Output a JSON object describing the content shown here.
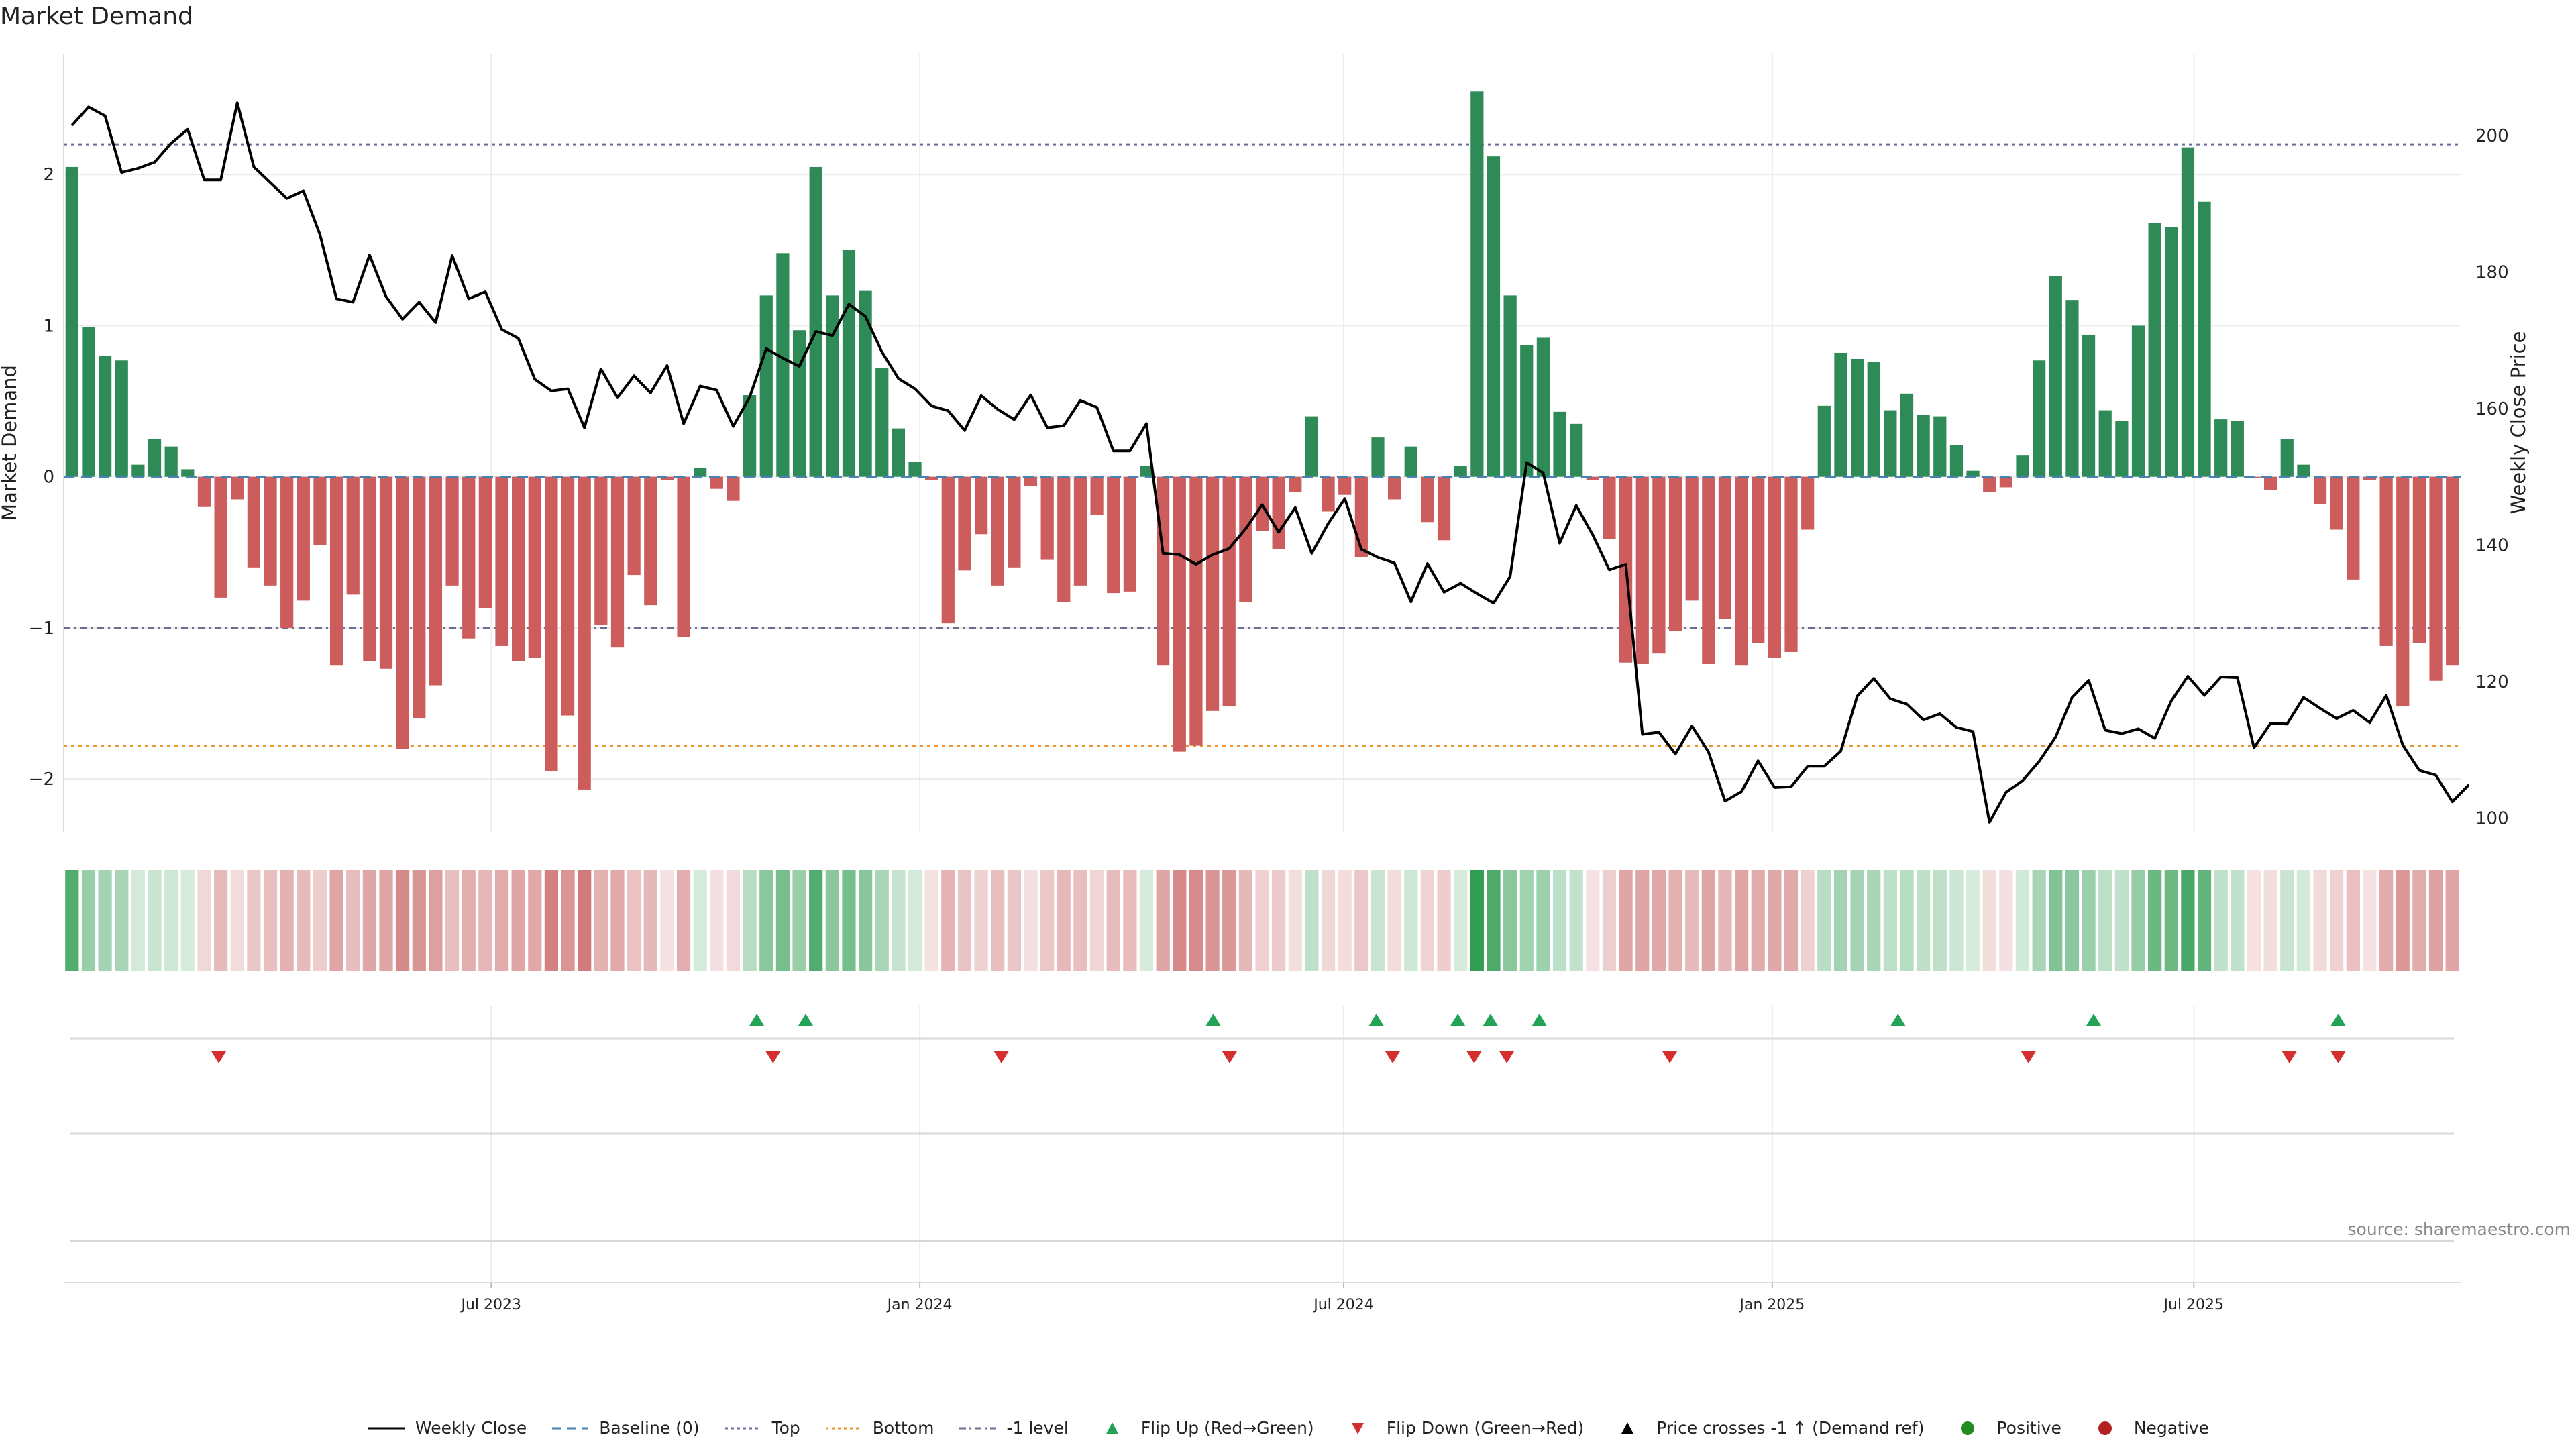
{
  "chart_data": {
    "type": "bar+line",
    "title": "Market Demand",
    "left_axis": {
      "label": "Market Demand",
      "ylim": [
        -2.35,
        2.8
      ],
      "ticks": [
        -2,
        -1,
        0,
        1,
        2
      ]
    },
    "right_axis": {
      "label": "Weekly Close Price",
      "ylim": [
        98,
        212
      ],
      "ticks": [
        100,
        120,
        140,
        160,
        180,
        200
      ]
    },
    "x_axis": {
      "start": "2023-01-02",
      "end": "2025-10-20",
      "ticks": [
        {
          "date": "2023-07-01",
          "label": "Jul 2023"
        },
        {
          "date": "2024-01-01",
          "label": "Jan 2024"
        },
        {
          "date": "2024-07-01",
          "label": "Jul 2024"
        },
        {
          "date": "2025-01-01",
          "label": "Jan 2025"
        },
        {
          "date": "2025-07-01",
          "label": "Jul 2025"
        }
      ]
    },
    "reference_lines": {
      "top": 2.2,
      "bottom": -1.78,
      "minus_one_level": -1,
      "baseline": 0
    },
    "demand": [
      2.05,
      0.99,
      0.8,
      0.77,
      0.08,
      0.25,
      0.2,
      0.05,
      -0.2,
      -0.8,
      -0.15,
      -0.6,
      -0.72,
      -1.0,
      -0.82,
      -0.45,
      -1.25,
      -0.78,
      -1.22,
      -1.27,
      -1.8,
      -1.6,
      -1.38,
      -0.72,
      -1.07,
      -0.87,
      -1.12,
      -1.22,
      -1.2,
      -1.95,
      -1.58,
      -2.07,
      -0.98,
      -1.13,
      -0.65,
      -0.85,
      -0.02,
      -1.06,
      0.06,
      -0.08,
      -0.16,
      0.54,
      1.2,
      1.48,
      0.97,
      2.05,
      1.2,
      1.5,
      1.23,
      0.72,
      0.32,
      0.1,
      -0.02,
      -0.97,
      -0.62,
      -0.38,
      -0.72,
      -0.6,
      -0.06,
      -0.55,
      -0.83,
      -0.72,
      -0.25,
      -0.77,
      -0.76,
      0.07,
      -1.25,
      -1.82,
      -1.78,
      -1.55,
      -1.52,
      -0.83,
      -0.36,
      -0.48,
      -0.1,
      0.4,
      -0.23,
      -0.12,
      -0.53,
      0.26,
      -0.15,
      0.2,
      -0.3,
      -0.42,
      0.07,
      2.55,
      2.12,
      1.2,
      0.87,
      0.92,
      0.43,
      0.35,
      -0.02,
      -0.41,
      -1.23,
      -1.24,
      -1.17,
      -1.02,
      -0.82,
      -1.24,
      -0.94,
      -1.25,
      -1.1,
      -1.2,
      -1.16,
      -0.35,
      0.47,
      0.82,
      0.78,
      0.76,
      0.44,
      0.55,
      0.41,
      0.4,
      0.21,
      0.04,
      -0.1,
      -0.07,
      0.14,
      0.77,
      1.33,
      1.17,
      0.94,
      0.44,
      0.37,
      1.0,
      1.68,
      1.65,
      2.18,
      1.82,
      0.38,
      0.37,
      -0.01,
      -0.09,
      0.25,
      0.08,
      -0.18,
      -0.35,
      -0.68,
      -0.02,
      -1.12,
      -1.52,
      -1.1,
      -1.35,
      -1.25
    ],
    "close": [
      201.5,
      204.2,
      202.9,
      194.6,
      195.2,
      196.1,
      198.9,
      200.9,
      193.5,
      193.5,
      204.8,
      195.4,
      193.1,
      190.8,
      191.9,
      185.5,
      176.1,
      175.6,
      182.5,
      176.4,
      173.1,
      175.6,
      172.6,
      182.4,
      176.1,
      177.1,
      171.6,
      170.3,
      164.3,
      162.6,
      162.9,
      157.2,
      165.8,
      161.6,
      164.8,
      162.3,
      166.3,
      157.8,
      163.3,
      162.7,
      157.4,
      161.7,
      168.8,
      167.4,
      166.2,
      171.3,
      170.7,
      175.3,
      173.5,
      168.3,
      164.4,
      162.9,
      160.4,
      159.7,
      156.8,
      161.9,
      159.9,
      158.4,
      162.0,
      157.2,
      157.5,
      161.2,
      160.2,
      153.8,
      153.8,
      157.8,
      138.8,
      138.6,
      137.2,
      138.6,
      139.5,
      142.4,
      145.9,
      141.9,
      145.5,
      138.8,
      143.2,
      146.8,
      139.4,
      138.2,
      137.4,
      131.7,
      137.3,
      133.1,
      134.4,
      132.9,
      131.5,
      135.4,
      152.1,
      150.6,
      140.3,
      145.8,
      141.5,
      136.4,
      137.2,
      112.3,
      112.6,
      109.4,
      113.5,
      109.7,
      102.5,
      103.9,
      108.4,
      104.5,
      104.6,
      107.6,
      107.6,
      109.8,
      117.9,
      120.5,
      117.5,
      116.7,
      114.4,
      115.3,
      113.3,
      112.7,
      99.4,
      103.8,
      105.5,
      108.3,
      111.9,
      117.7,
      120.2,
      112.9,
      112.4,
      113.1,
      111.7,
      117.2,
      120.8,
      118.0,
      120.7,
      120.6,
      110.3,
      113.9,
      113.8,
      117.7,
      116.1,
      114.6,
      115.8,
      114.0,
      118.0,
      110.7,
      107.0,
      106.3,
      102.4,
      104.9
    ],
    "flip_up": [
      "2023-10-23",
      "2023-11-13",
      "2024-05-06",
      "2024-07-15",
      "2024-08-19",
      "2024-09-02",
      "2024-09-23",
      "2025-02-24",
      "2025-05-19",
      "2025-09-01"
    ],
    "flip_down": [
      "2023-03-06",
      "2023-10-30",
      "2024-02-05",
      "2024-05-13",
      "2024-07-22",
      "2024-08-26",
      "2024-09-09",
      "2024-11-18",
      "2025-04-21",
      "2025-08-11",
      "2025-09-01"
    ],
    "heat_strip": "Market Demand intensity per week (green = positive, red = negative)",
    "legend": [
      "Weekly Close",
      "Baseline (0)",
      "Top",
      "Bottom",
      "-1 level",
      "Flip Up (Red→Green)",
      "Flip Down (Green→Red)",
      "Price crosses -1 ↑ (Demand ref)",
      "Positive",
      "Negative"
    ]
  },
  "source_note": "source: sharemaestro.com",
  "colors": {
    "positive_bar": "#2e8b57",
    "negative_bar": "#cd5c5c",
    "close_line": "#000000",
    "baseline": "#4682b4",
    "top_line": "#6c6ca0",
    "bottom_line": "#e8962a",
    "minus_one_line": "#6c6c90",
    "flip_up": "#22a355",
    "flip_down": "#d32f2f",
    "positive_dot": "#228b22",
    "negative_dot": "#b22222"
  }
}
